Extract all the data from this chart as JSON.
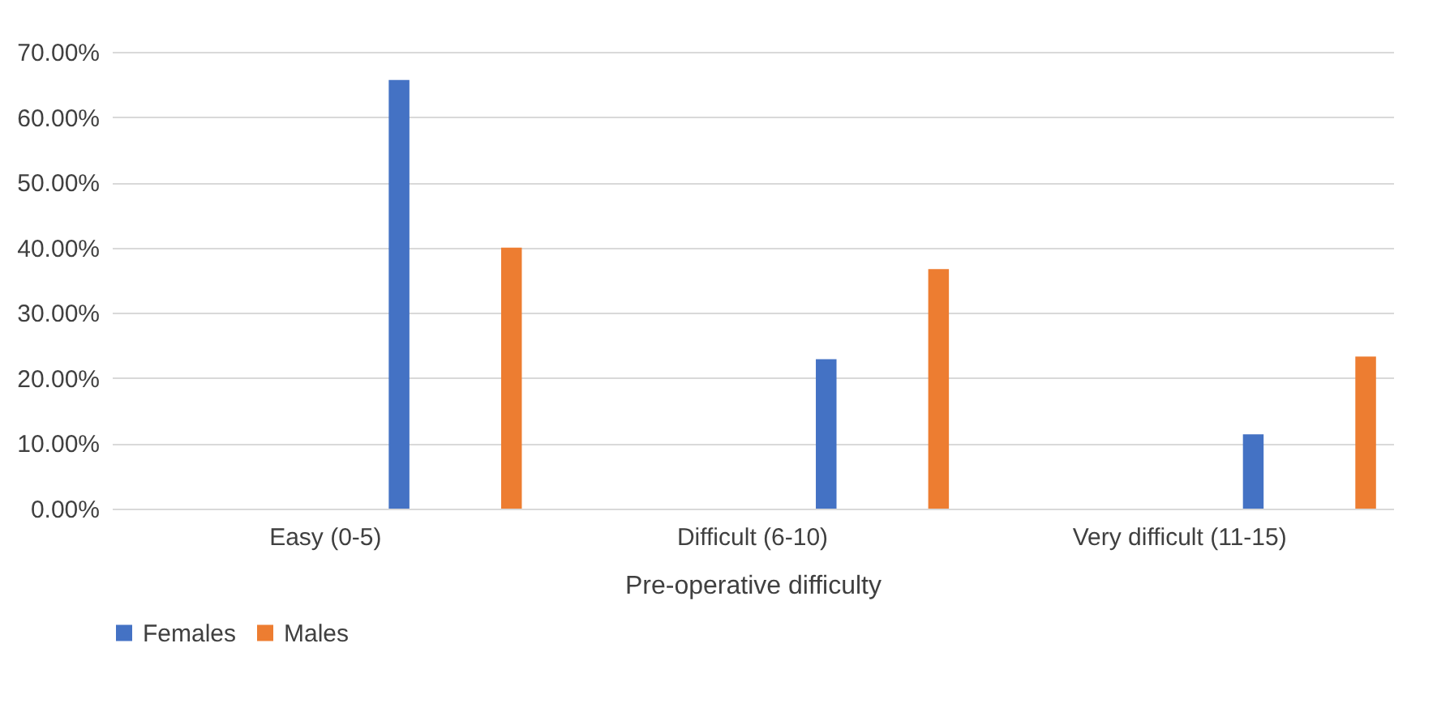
{
  "chart_data": {
    "type": "bar",
    "xlabel": "Pre-operative difficulty",
    "categories": [
      "Easy (0-5)",
      "Difficult (6-10)",
      "Very difficult (11-15)"
    ],
    "series": [
      {
        "name": "Females",
        "color": "#4472c4",
        "values": [
          65.7,
          22.9,
          11.4
        ]
      },
      {
        "name": "Males",
        "color": "#ed7d31",
        "values": [
          40,
          36.7,
          23.3
        ]
      }
    ],
    "ylim": [
      0,
      70
    ],
    "yticks": [
      {
        "value": 0,
        "label": "0.00%"
      },
      {
        "value": 10,
        "label": "10.00%"
      },
      {
        "value": 20,
        "label": "20.00%"
      },
      {
        "value": 30,
        "label": "30.00%"
      },
      {
        "value": 40,
        "label": "40.00%"
      },
      {
        "value": 50,
        "label": "50.00%"
      },
      {
        "value": 60,
        "label": "60.00%"
      },
      {
        "value": 70,
        "label": "70.00%"
      }
    ],
    "grid": "y",
    "legend": "bottom"
  }
}
